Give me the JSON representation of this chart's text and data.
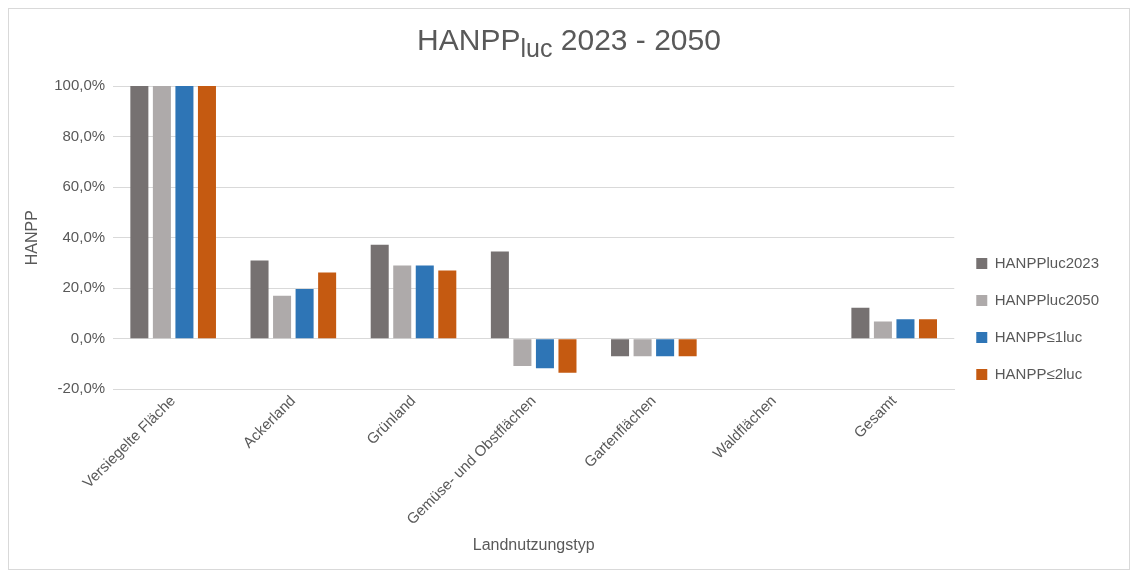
{
  "chart_data": {
    "type": "bar",
    "title": "HANPP$_{luc}$ 2023 - 2050",
    "xlabel": "Landnutzungstyp",
    "ylabel": "HANPP",
    "categories": [
      "Versiegelte Fläche",
      "Ackerland",
      "Grünland",
      "Gemüse- und Obstflächen",
      "Gartenflächen",
      "Waldflächen",
      "Gesamt"
    ],
    "series": [
      {
        "name": "HANPPluc2023",
        "color": "#767171",
        "values": [
          100,
          31,
          37.2,
          34.5,
          -6.9,
          0,
          12.3
        ]
      },
      {
        "name": "HANPPluc2050",
        "color": "#aeaaaa",
        "values": [
          100,
          17,
          29,
          -10.8,
          -6.9,
          0,
          6.8
        ]
      },
      {
        "name": "HANPP≤1luc",
        "color": "#2e75b6",
        "values": [
          100,
          19.7,
          29,
          -11.7,
          -6.9,
          0,
          7.7
        ]
      },
      {
        "name": "HANPP≤2luc",
        "color": "#c55a11",
        "values": [
          100,
          26.2,
          27,
          -13.5,
          -6.9,
          0,
          7.7
        ]
      }
    ],
    "ylim": [
      -20,
      100
    ],
    "yticks": [
      {
        "value": -20,
        "label": "-20,0%"
      },
      {
        "value": 0,
        "label": "0,0%"
      },
      {
        "value": 20,
        "label": "20,0%"
      },
      {
        "value": 40,
        "label": "40,0%"
      },
      {
        "value": 60,
        "label": "60,0%"
      },
      {
        "value": 80,
        "label": "80,0%"
      },
      {
        "value": 100,
        "label": "100,0%"
      }
    ],
    "grid": "y",
    "legend": "right"
  }
}
